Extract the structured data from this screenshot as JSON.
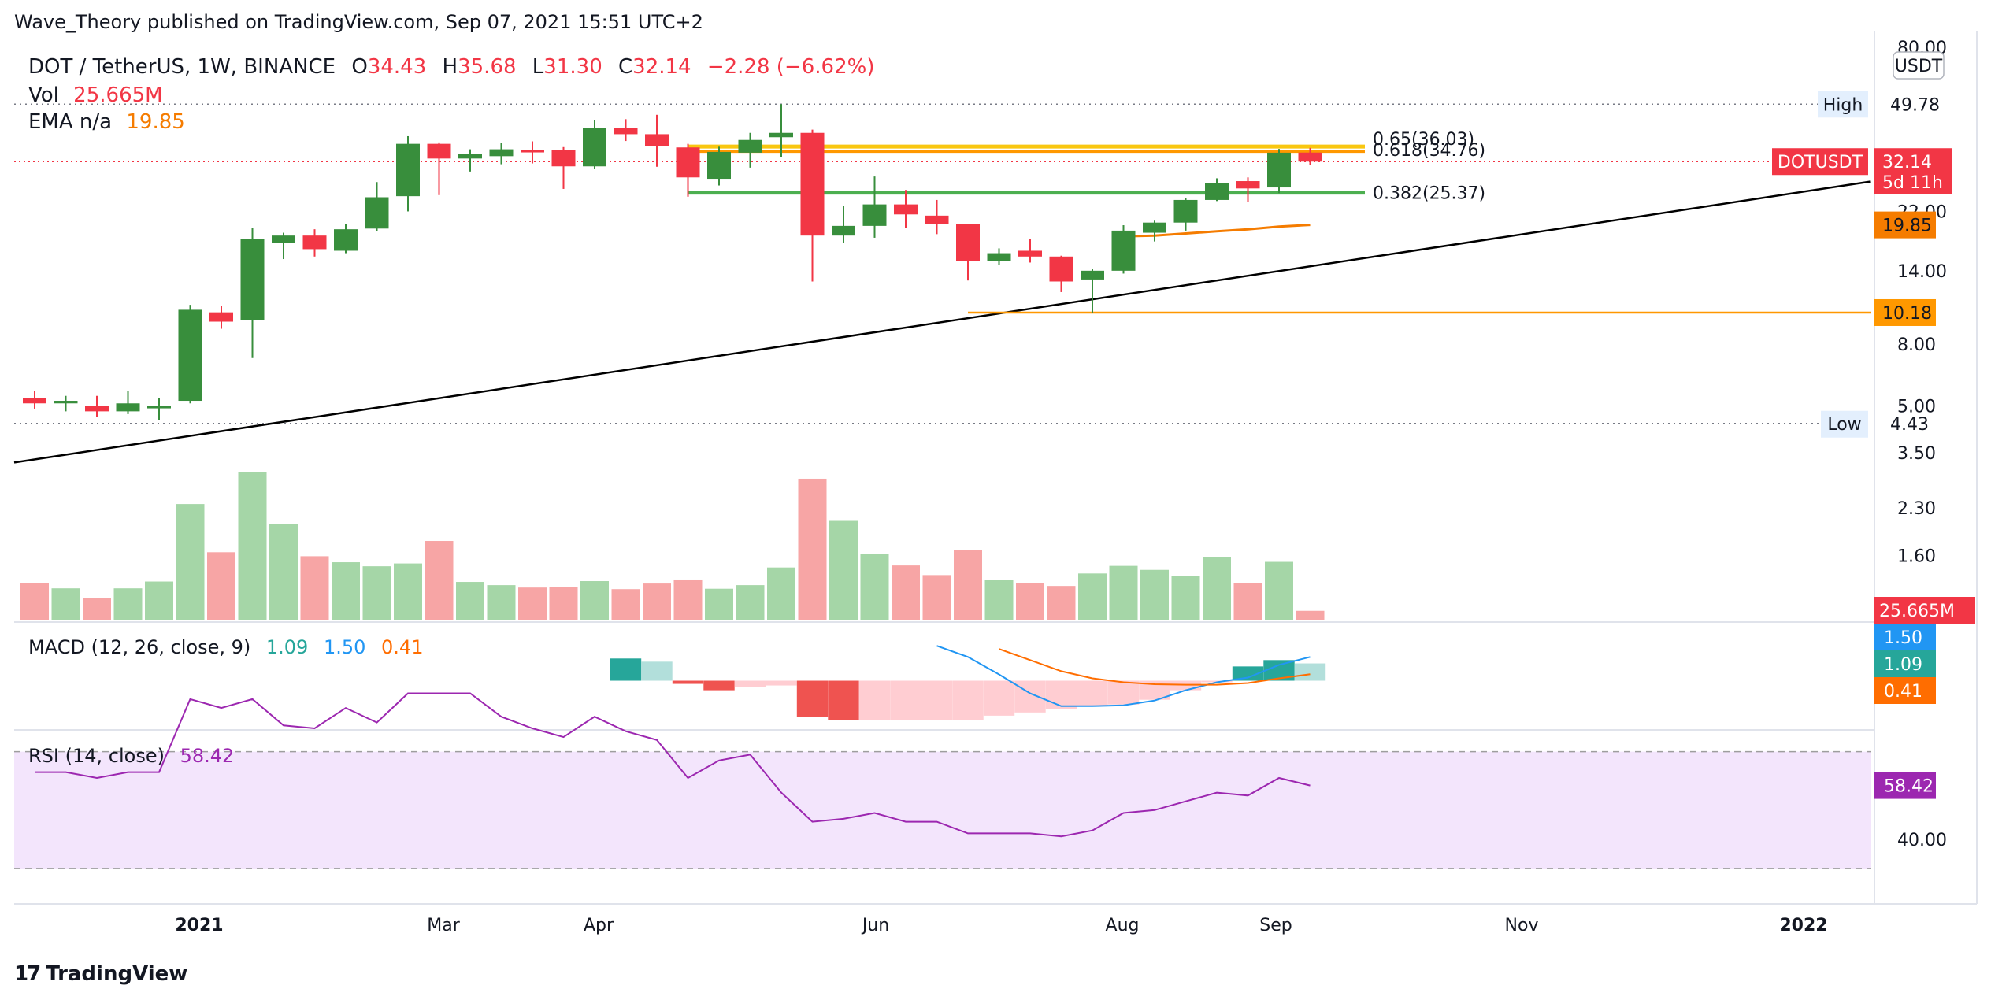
{
  "publisher": "Wave_Theory published on TradingView.com, Sep 07, 2021 15:51 UTC+2",
  "brand": {
    "logo_icon": "tradingview-logo-icon",
    "name": "TradingView"
  },
  "colors": {
    "up": "#388e3c",
    "down": "#f23645",
    "vol_up": "#a5d6a7",
    "vol_down": "#f7a5a5",
    "ema": "#f57c00",
    "fib618": "#f9c710",
    "fib382": "#4caf50",
    "trend": "#000000",
    "support": "#ff9800",
    "macd": "#2196f3",
    "signal": "#ff6d00",
    "rsi": "#9c27b0",
    "rsi_band": "#f3e5fc"
  },
  "legend": {
    "symbol": "DOT / TetherUS, 1W, BINANCE",
    "o_label": "O",
    "o_value": "34.43",
    "h_label": "H",
    "h_value": "35.68",
    "l_label": "L",
    "l_value": "31.30",
    "c_label": "C",
    "c_value": "32.14",
    "change": "−2.28 (−6.62%)",
    "vol_label": "Vol",
    "vol_value": "25.665M",
    "ema_label": "EMA n/a",
    "ema_value": "19.85"
  },
  "macd_legend": {
    "label": "MACD (12, 26, close, 9)",
    "hist": "1.09",
    "macd": "1.50",
    "signal": "0.41"
  },
  "rsi_legend": {
    "label": "RSI (14, close)",
    "value": "58.42"
  },
  "price_axis": {
    "unit": "USDT",
    "ticks": [
      "80.00",
      "49.78",
      "22.00",
      "14.00",
      "8.00",
      "5.00",
      "3.50",
      "2.30",
      "1.60"
    ],
    "tick_values": [
      80,
      49.78,
      22,
      14,
      8,
      5,
      3.5,
      2.3,
      1.6
    ]
  },
  "rsi_axis": {
    "ticks": [
      "40.00"
    ]
  },
  "badges": {
    "high_label": "High",
    "high_value": "49.78",
    "low_label": "Low",
    "low_value": "4.43",
    "symbol_tag": "DOTUSDT",
    "last_price": "32.14",
    "countdown": "5d 11h",
    "ema_value": "19.85",
    "support_value": "10.18",
    "vol_value": "25.665M",
    "macd_value": "1.50",
    "hist_value": "1.09",
    "signal_value": "0.41",
    "rsi_value": "58.42"
  },
  "fib_labels": {
    "fib65": "0.65(36.03)",
    "fib618": "0.618(34.76)",
    "fib382": "0.382(25.37)"
  },
  "time_axis": [
    "2021",
    "Mar",
    "Apr",
    "Jun",
    "Aug",
    "Sep",
    "Nov",
    "2022"
  ],
  "chart_data": {
    "type": "candlestick",
    "scale": "log",
    "ylim": [
      3.2,
      84
    ],
    "candles": [
      {
        "o": 5.3,
        "h": 5.6,
        "l": 4.9,
        "c": 5.1
      },
      {
        "o": 5.1,
        "h": 5.4,
        "l": 4.8,
        "c": 5.2
      },
      {
        "o": 5.0,
        "h": 5.4,
        "l": 4.6,
        "c": 4.8
      },
      {
        "o": 4.8,
        "h": 5.6,
        "l": 4.7,
        "c": 5.1
      },
      {
        "o": 5.0,
        "h": 5.3,
        "l": 4.5,
        "c": 5.0
      },
      {
        "o": 5.2,
        "h": 10.8,
        "l": 5.1,
        "c": 10.4
      },
      {
        "o": 10.2,
        "h": 10.7,
        "l": 9.0,
        "c": 9.5
      },
      {
        "o": 9.6,
        "h": 19.4,
        "l": 7.2,
        "c": 17.8
      },
      {
        "o": 17.3,
        "h": 18.7,
        "l": 15.3,
        "c": 18.3
      },
      {
        "o": 18.3,
        "h": 19.2,
        "l": 15.6,
        "c": 16.5
      },
      {
        "o": 16.3,
        "h": 20.0,
        "l": 16.0,
        "c": 19.2
      },
      {
        "o": 19.3,
        "h": 27.5,
        "l": 18.9,
        "c": 24.5
      },
      {
        "o": 24.7,
        "h": 39.0,
        "l": 22.0,
        "c": 36.8
      },
      {
        "o": 36.8,
        "h": 37.2,
        "l": 24.9,
        "c": 32.9
      },
      {
        "o": 32.9,
        "h": 35.3,
        "l": 29.8,
        "c": 34.1
      },
      {
        "o": 33.5,
        "h": 37.0,
        "l": 31.5,
        "c": 35.3
      },
      {
        "o": 35.1,
        "h": 37.5,
        "l": 31.7,
        "c": 35.0
      },
      {
        "o": 35.2,
        "h": 35.9,
        "l": 26.1,
        "c": 31.0
      },
      {
        "o": 31.0,
        "h": 44.0,
        "l": 30.5,
        "c": 41.5
      },
      {
        "o": 41.5,
        "h": 44.4,
        "l": 37.6,
        "c": 39.6
      },
      {
        "o": 39.6,
        "h": 45.9,
        "l": 30.9,
        "c": 36.1
      },
      {
        "o": 35.8,
        "h": 36.8,
        "l": 24.6,
        "c": 28.5
      },
      {
        "o": 28.2,
        "h": 36.0,
        "l": 26.8,
        "c": 34.6
      },
      {
        "o": 34.4,
        "h": 40.0,
        "l": 30.7,
        "c": 37.9
      },
      {
        "o": 38.7,
        "h": 49.78,
        "l": 33.2,
        "c": 40.0
      },
      {
        "o": 40.0,
        "h": 41.0,
        "l": 12.9,
        "c": 18.3
      },
      {
        "o": 18.3,
        "h": 23.0,
        "l": 17.3,
        "c": 19.7
      },
      {
        "o": 19.7,
        "h": 28.7,
        "l": 18.0,
        "c": 23.2
      },
      {
        "o": 23.2,
        "h": 25.9,
        "l": 19.4,
        "c": 21.5
      },
      {
        "o": 21.3,
        "h": 24.0,
        "l": 18.5,
        "c": 20.0
      },
      {
        "o": 20.0,
        "h": 20.0,
        "l": 13.0,
        "c": 15.1
      },
      {
        "o": 15.1,
        "h": 16.6,
        "l": 14.6,
        "c": 16.0
      },
      {
        "o": 16.3,
        "h": 17.8,
        "l": 14.9,
        "c": 15.6
      },
      {
        "o": 15.6,
        "h": 15.7,
        "l": 11.9,
        "c": 12.9
      },
      {
        "o": 13.1,
        "h": 14.2,
        "l": 10.18,
        "c": 14.0
      },
      {
        "o": 14.0,
        "h": 19.8,
        "l": 13.7,
        "c": 19.0
      },
      {
        "o": 18.7,
        "h": 20.5,
        "l": 17.5,
        "c": 20.2
      },
      {
        "o": 20.2,
        "h": 24.4,
        "l": 19.0,
        "c": 24.0
      },
      {
        "o": 24.0,
        "h": 28.3,
        "l": 23.8,
        "c": 27.3
      },
      {
        "o": 27.7,
        "h": 28.5,
        "l": 23.7,
        "c": 26.2
      },
      {
        "o": 26.4,
        "h": 35.4,
        "l": 25.3,
        "c": 34.4
      },
      {
        "o": 34.43,
        "h": 35.68,
        "l": 31.3,
        "c": 32.14
      }
    ],
    "volume_m": [
      94,
      80,
      55,
      80,
      97,
      290,
      170,
      370,
      240,
      160,
      145,
      135,
      142,
      198,
      96,
      88,
      82,
      84,
      98,
      78,
      92,
      102,
      79,
      88,
      132,
      353,
      248,
      166,
      137,
      113,
      176,
      101,
      94,
      86,
      117,
      136,
      126,
      111,
      158,
      94,
      146,
      24
    ],
    "ema": [
      null,
      null,
      null,
      null,
      null,
      null,
      null,
      null,
      null,
      null,
      null,
      null,
      null,
      null,
      null,
      null,
      null,
      null,
      null,
      null,
      null,
      null,
      null,
      null,
      null,
      null,
      null,
      null,
      null,
      null,
      null,
      null,
      null,
      null,
      null,
      18.2,
      18.3,
      18.6,
      18.9,
      19.2,
      19.6,
      19.85
    ],
    "macd_hist": [
      null,
      null,
      null,
      null,
      null,
      null,
      null,
      null,
      null,
      null,
      null,
      null,
      null,
      null,
      null,
      null,
      null,
      null,
      null,
      1.4,
      1.2,
      -0.2,
      -0.6,
      -0.4,
      -0.3,
      -2.3,
      -2.5,
      -2.5,
      -2.5,
      -2.5,
      -2.5,
      -2.2,
      -2.0,
      -1.8,
      -1.6,
      -1.5,
      -1.2,
      -0.6,
      -0.1,
      0.9,
      1.3,
      1.09
    ],
    "macd_line": [
      null,
      null,
      null,
      null,
      null,
      null,
      null,
      null,
      null,
      null,
      null,
      null,
      null,
      null,
      null,
      null,
      null,
      null,
      null,
      null,
      null,
      null,
      null,
      null,
      null,
      null,
      null,
      null,
      null,
      2.2,
      1.5,
      0.4,
      -0.8,
      -1.6,
      -1.6,
      -1.55,
      -1.25,
      -0.6,
      -0.1,
      0.2,
      1.0,
      1.5
    ],
    "signal_line": [
      null,
      null,
      null,
      null,
      null,
      null,
      null,
      null,
      null,
      null,
      null,
      null,
      null,
      null,
      null,
      null,
      null,
      null,
      null,
      null,
      null,
      null,
      null,
      null,
      null,
      null,
      null,
      null,
      null,
      null,
      null,
      2.0,
      1.3,
      0.6,
      0.15,
      -0.1,
      -0.22,
      -0.25,
      -0.25,
      -0.15,
      0.15,
      0.41
    ],
    "rsi": [
      63,
      63,
      61,
      63,
      63,
      88,
      85,
      88,
      79,
      78,
      85,
      80,
      90,
      90,
      90,
      82,
      78,
      75,
      82,
      77,
      74,
      61,
      67,
      69,
      56,
      46,
      47,
      49,
      46,
      46,
      42,
      42,
      42,
      41,
      43,
      49,
      50,
      53,
      56,
      55,
      61,
      58.42
    ],
    "macd_ylim": [
      -3.0,
      3.2
    ],
    "rsi_ylim": [
      20,
      78
    ],
    "rsi_bands": [
      70,
      30
    ],
    "fib_levels": {
      "fib65": 36.03,
      "fib618": 34.76,
      "fib382": 25.37
    },
    "high": 49.78,
    "low": 4.43,
    "support": 10.18,
    "trendline": {
      "start": [
        0,
        3.25
      ],
      "end": [
        59,
        27.6
      ]
    }
  }
}
